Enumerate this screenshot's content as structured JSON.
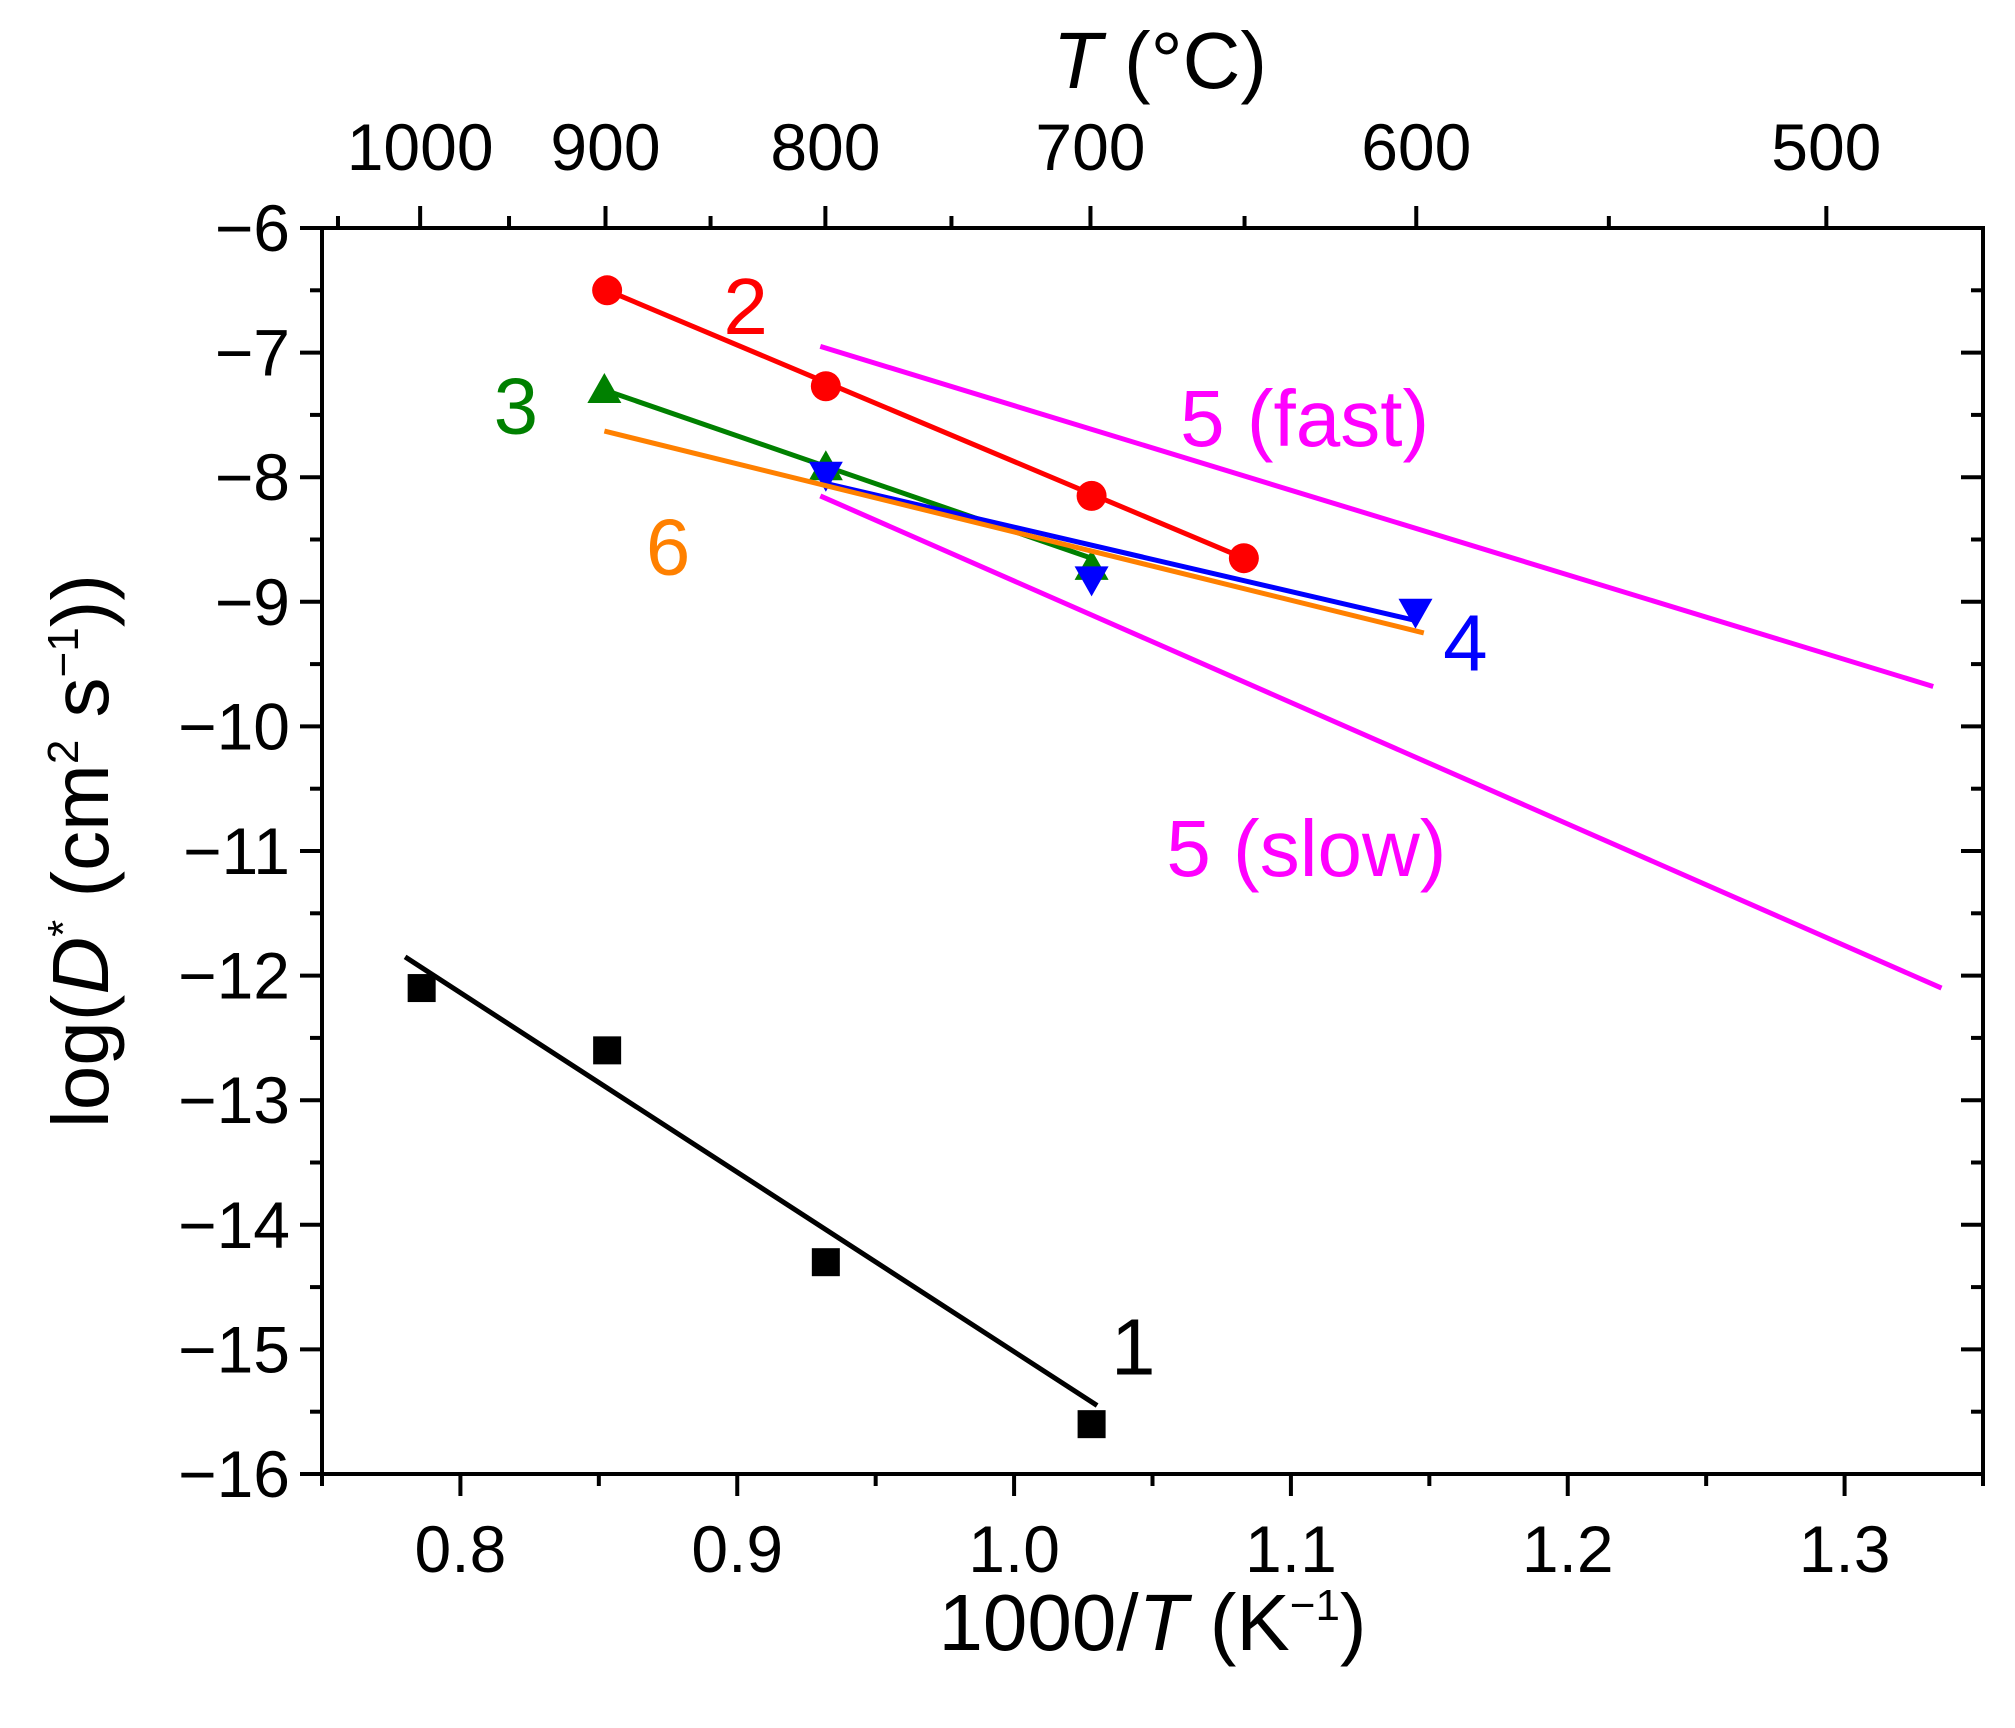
{
  "chart_data": {
    "type": "scatter",
    "xlabel": {
      "prefix": "1000/",
      "italic": "T",
      "mid": " (K",
      "sup": "−1",
      "suffix": ")"
    },
    "ylabel": {
      "prefix": "log(",
      "italic": "D",
      "sup1": "*",
      "mid": " (cm",
      "sup2": "2",
      "mid2": " s",
      "sup3": "−1",
      "suffix": "))"
    },
    "top_xlabel": {
      "italic": "T",
      "rest": " (°C)"
    },
    "xlim": [
      0.75,
      1.35
    ],
    "ylim": [
      -16,
      -6
    ],
    "x_ticks": [
      0.8,
      0.9,
      1.0,
      1.1,
      1.2,
      1.3
    ],
    "x_tick_labels": [
      "0.8",
      "0.9",
      "1.0",
      "1.1",
      "1.2",
      "1.3"
    ],
    "y_ticks": [
      -16,
      -15,
      -14,
      -13,
      -12,
      -11,
      -10,
      -9,
      -8,
      -7,
      -6
    ],
    "y_tick_labels": [
      "−16",
      "−15",
      "−14",
      "−13",
      "−12",
      "−11",
      "−10",
      "−9",
      "−8",
      "−7",
      "−6"
    ],
    "top_ticks": [
      {
        "celsius": 1000,
        "label": "1000"
      },
      {
        "celsius": 900,
        "label": "900"
      },
      {
        "celsius": 800,
        "label": "800"
      },
      {
        "celsius": 700,
        "label": "700"
      },
      {
        "celsius": 600,
        "label": "600"
      },
      {
        "celsius": 500,
        "label": "500"
      }
    ],
    "series": [
      {
        "name": "1",
        "color": "#000000",
        "marker": "square",
        "points": [
          [
            0.786,
            -12.1
          ],
          [
            0.853,
            -12.6
          ],
          [
            0.932,
            -14.3
          ],
          [
            1.028,
            -15.6
          ]
        ],
        "fit": [
          [
            0.78,
            -11.85
          ],
          [
            1.03,
            -15.45
          ]
        ],
        "label": "1",
        "label_pos": [
          1.035,
          -15.2
        ]
      },
      {
        "name": "2",
        "color": "#ff0000",
        "marker": "circle",
        "points": [
          [
            0.853,
            -6.5
          ],
          [
            0.932,
            -7.27
          ],
          [
            1.028,
            -8.15
          ],
          [
            1.083,
            -8.65
          ]
        ],
        "fit": [
          [
            0.853,
            -6.5
          ],
          [
            1.083,
            -8.65
          ]
        ],
        "label": "2",
        "label_pos": [
          0.895,
          -6.85
        ]
      },
      {
        "name": "3",
        "color": "#008000",
        "marker": "triangle-up",
        "points": [
          [
            0.852,
            -7.3
          ],
          [
            0.932,
            -7.92
          ],
          [
            1.028,
            -8.72
          ]
        ],
        "fit": [
          [
            0.852,
            -7.3
          ],
          [
            1.028,
            -8.65
          ]
        ],
        "label": "3",
        "label_pos": [
          0.812,
          -7.65
        ]
      },
      {
        "name": "4",
        "color": "#0000ff",
        "marker": "triangle-down",
        "points": [
          [
            0.932,
            -7.98
          ],
          [
            1.028,
            -8.82
          ],
          [
            1.145,
            -9.08
          ]
        ],
        "fit": [
          [
            0.932,
            -8.05
          ],
          [
            1.145,
            -9.15
          ]
        ],
        "label": "4",
        "label_pos": [
          1.155,
          -9.55
        ]
      },
      {
        "name": "5 (fast)",
        "color": "#ff00ff",
        "marker": "none",
        "points": [],
        "fit": [
          [
            0.93,
            -6.95
          ],
          [
            1.332,
            -9.68
          ]
        ],
        "label": "5 (fast)",
        "label_pos": [
          1.06,
          -7.75
        ]
      },
      {
        "name": "5 (slow)",
        "color": "#ff00ff",
        "marker": "none",
        "points": [],
        "fit": [
          [
            0.93,
            -8.15
          ],
          [
            1.335,
            -12.1
          ]
        ],
        "label": "5 (slow)",
        "label_pos": [
          1.055,
          -11.2
        ]
      },
      {
        "name": "6",
        "color": "#ff8000",
        "marker": "none",
        "points": [],
        "fit": [
          [
            0.852,
            -7.63
          ],
          [
            1.148,
            -9.25
          ]
        ],
        "label": "6",
        "label_pos": [
          0.867,
          -8.78
        ]
      }
    ]
  }
}
